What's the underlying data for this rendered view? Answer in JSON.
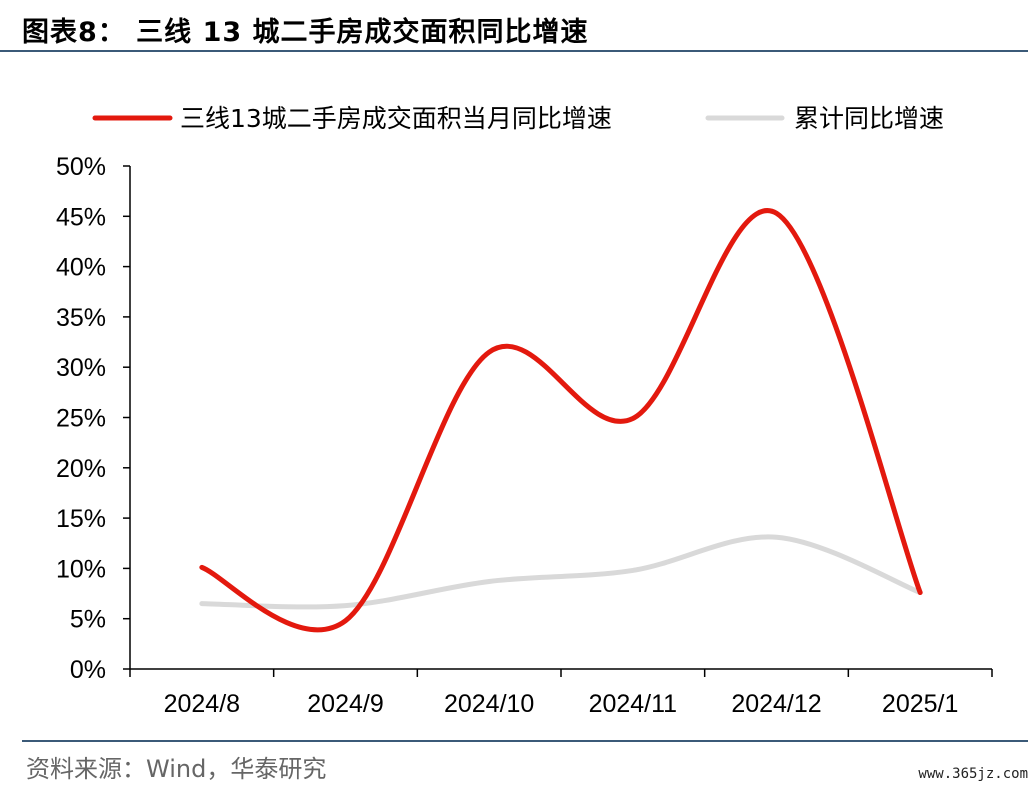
{
  "figure_label": "图表8：  三线 13 城二手房成交面积同比增速",
  "source_note": "资料来源：Wind，华泰研究",
  "watermark": "www.365jz.com",
  "colors": {
    "series_main": "#e3190e",
    "series_cum": "#d9d9d9",
    "rule": "#3b5a78",
    "axis": "#000000"
  },
  "chart_data": {
    "type": "line",
    "categories": [
      "2024/8",
      "2024/9",
      "2024/10",
      "2024/11",
      "2024/12",
      "2025/1"
    ],
    "series": [
      {
        "name": "三线13城二手房成交面积当月同比增速",
        "values": [
          0.101,
          0.048,
          0.315,
          0.249,
          0.453,
          0.076
        ]
      },
      {
        "name": "累计同比增速",
        "values": [
          0.065,
          0.063,
          0.087,
          0.098,
          0.131,
          0.076
        ]
      }
    ],
    "ylim": [
      0,
      0.5
    ],
    "yticks": [
      "0%",
      "5%",
      "10%",
      "15%",
      "20%",
      "25%",
      "30%",
      "35%",
      "40%",
      "45%",
      "50%"
    ],
    "legend": "top",
    "grid": false
  }
}
